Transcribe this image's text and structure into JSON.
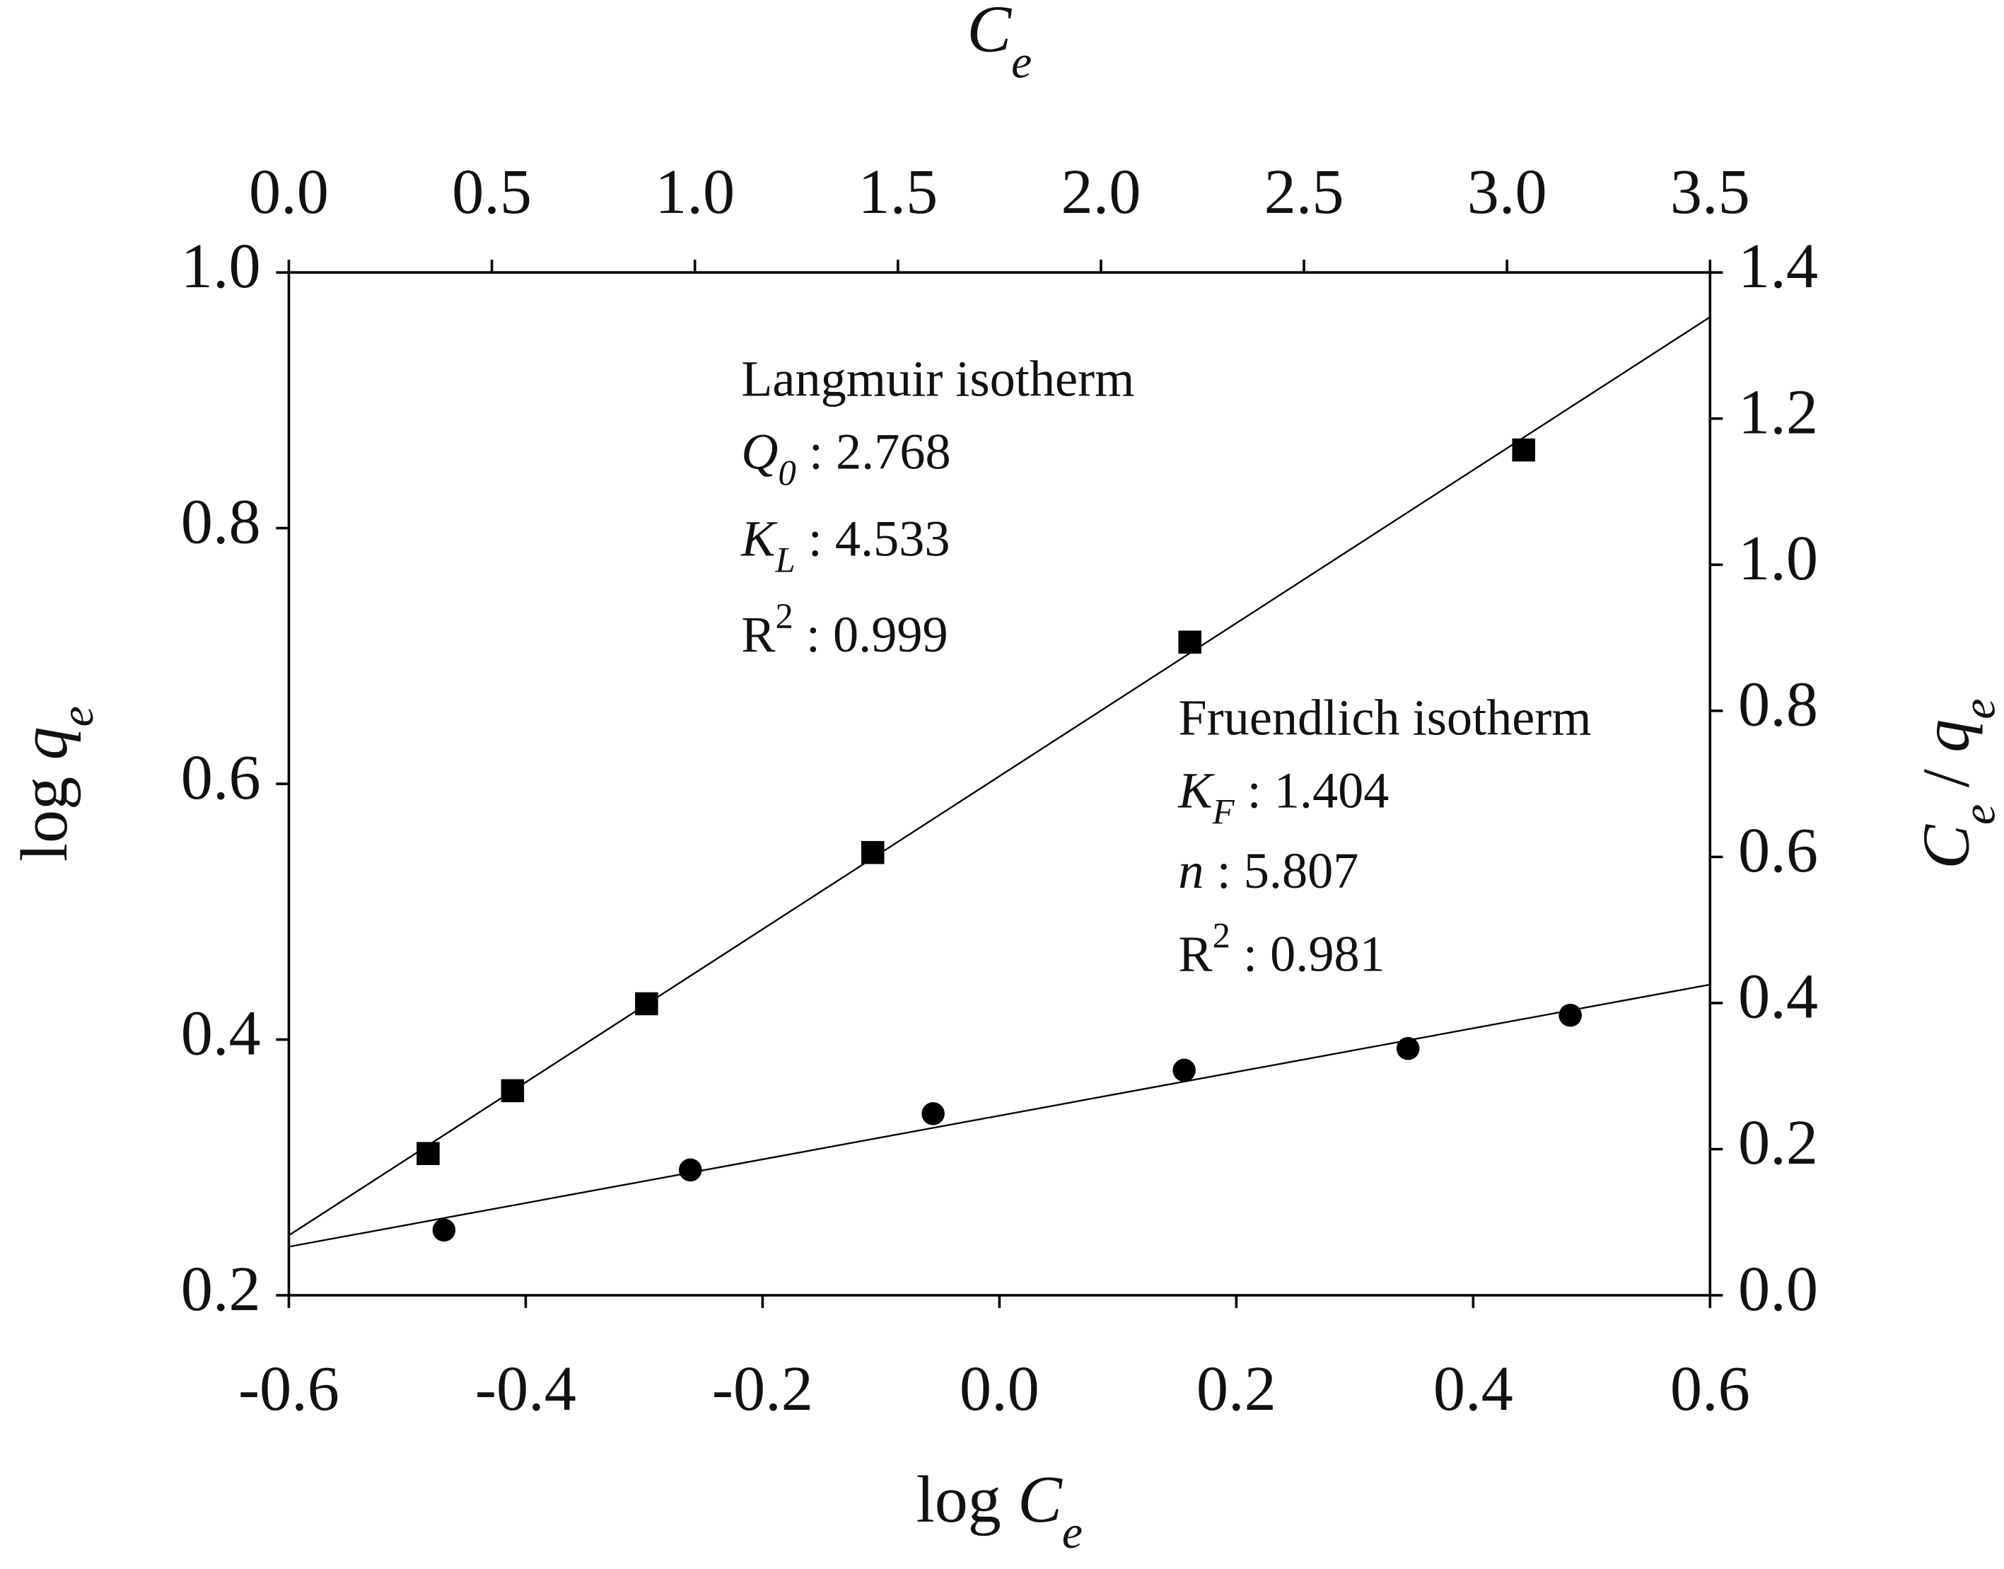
{
  "chart_data": {
    "type": "dual-axis-scatter",
    "xlabel": {
      "text": "log ",
      "symbol": "C",
      "sub": "e"
    },
    "ylabel": {
      "text": "log ",
      "symbol": "q",
      "sub": "e"
    },
    "x2label": {
      "symbol": "C",
      "sub": "e"
    },
    "y2label": {
      "symbol": "C",
      "sub": "e",
      "text": " / ",
      "symbol2": "q",
      "sub2": "e"
    },
    "xlim": [
      -0.6,
      0.6
    ],
    "xticks": [
      -0.6,
      -0.4,
      -0.2,
      {
        "value": 0,
        "label": "0.0"
      },
      0.2,
      0.4,
      0.6
    ],
    "ylim": [
      0.2,
      1.0
    ],
    "yticks": [
      0.2,
      0.4,
      0.6,
      0.8,
      {
        "value": 1,
        "label": "1.0"
      }
    ],
    "x2lim": [
      0,
      3.5
    ],
    "x2ticks": [
      {
        "value": 0,
        "label": "0.0"
      },
      0.5,
      {
        "value": 1,
        "label": "1.0"
      },
      1.5,
      {
        "value": 2,
        "label": "2.0"
      },
      2.5,
      {
        "value": 3,
        "label": "3.0"
      },
      3.5
    ],
    "y2lim": [
      0,
      1.4
    ],
    "y2ticks": [
      {
        "value": 0,
        "label": "0.0"
      },
      0.2,
      0.4,
      0.6,
      0.8,
      {
        "value": 1,
        "label": "1.0"
      },
      1.2,
      1.4
    ],
    "series": [
      {
        "marker": "square",
        "color": "#000000",
        "axis": "y2",
        "x": [
          0.343,
          0.551,
          0.881,
          1.438,
          2.219,
          3.041
        ],
        "values": [
          0.194,
          0.28,
          0.399,
          0.606,
          0.894,
          1.157
        ],
        "fit": {
          "x": [
            0,
            3.5
          ],
          "values": [
            0.082,
            1.339
          ]
        }
      },
      {
        "marker": "circle",
        "color": "#000000",
        "axis": "y",
        "x": [
          -0.469,
          -0.261,
          -0.056,
          0.156,
          0.345,
          0.482
        ],
        "values": [
          0.251,
          0.298,
          0.342,
          0.376,
          0.393,
          0.419
        ],
        "fit": {
          "x": [
            -0.6,
            0.6
          ],
          "values": [
            0.238,
            0.443
          ]
        }
      }
    ],
    "annotations": [
      {
        "lines": [
          {
            "value": "Langmuir isotherm"
          },
          {
            "symbol": "Q",
            "sub": "0",
            "italic": true,
            "value": " : 2.768"
          },
          {
            "symbol": "K",
            "sub": "L",
            "italic": true,
            "value": " : 4.533"
          },
          {
            "symbol": "R",
            "sup": "2",
            "italic": false,
            "value": " : 0.999"
          }
        ]
      },
      {
        "lines": [
          {
            "value": "Fruendlich isotherm"
          },
          {
            "symbol": "K",
            "sub": "F",
            "italic": true,
            "value": " : 1.404"
          },
          {
            "symbol": "n",
            "italic": true,
            "value": " : 5.807"
          },
          {
            "symbol": "R",
            "sup": "2",
            "italic": false,
            "value": " : 0.981"
          }
        ]
      }
    ]
  }
}
